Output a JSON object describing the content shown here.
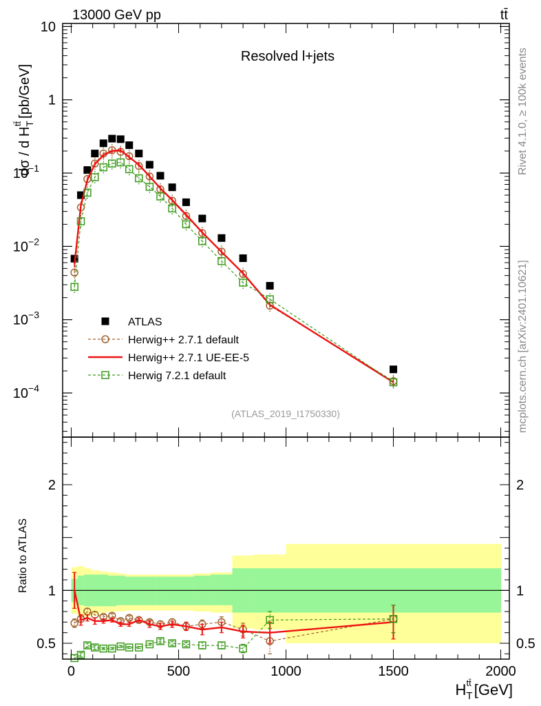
{
  "header": {
    "energy_label": "13000 GeV pp",
    "process_label": "tt̄"
  },
  "side_labels": {
    "rivet": "Rivet 4.1.0, ≥ 100k events",
    "mcplots": "mcplots.cern.ch [arXiv:2401.10621]"
  },
  "colors": {
    "atlas": "#000000",
    "herwigpp_default": "#a0622d",
    "herwigpp_ueee5": "#ee1111",
    "herwig7": "#3a9a1a",
    "band_inner": "#98f598",
    "band_outer": "#ffff99"
  },
  "chart_data": [
    {
      "type": "scatter",
      "panel": "main",
      "title": "Resolved l+jets",
      "analysis_tag": "(ATLAS_2019_I1750330)",
      "ylabel": "dσ / d H",
      "ylabel_sup": "tt̄",
      "ylabel_sub": "T",
      "ylabel_unit": "[pb/GeV]",
      "yscale": "log",
      "xlim": [
        -40,
        2040
      ],
      "ylim": [
        2.5e-05,
        11
      ],
      "yticks": [
        {
          "v": 10,
          "label": "10"
        },
        {
          "v": 1,
          "label": "1"
        },
        {
          "v": 0.1,
          "label": "10",
          "exp": "−1"
        },
        {
          "v": 0.01,
          "label": "10",
          "exp": "−2"
        },
        {
          "v": 0.001,
          "label": "10",
          "exp": "−3"
        },
        {
          "v": 0.0001,
          "label": "10",
          "exp": "−4"
        }
      ],
      "legend_position": "bottom-left",
      "series": [
        {
          "name": "ATLAS",
          "key": "atlas",
          "style": "data",
          "x": [
            15,
            45,
            75,
            110,
            150,
            190,
            230,
            270,
            315,
            365,
            415,
            470,
            535,
            610,
            700,
            800,
            925,
            1500
          ],
          "y": [
            0.0068,
            0.05,
            0.11,
            0.185,
            0.255,
            0.295,
            0.29,
            0.24,
            0.185,
            0.13,
            0.092,
            0.064,
            0.04,
            0.024,
            0.013,
            0.0069,
            0.0029,
            0.00021
          ]
        },
        {
          "name": "Herwig++ 2.7.1 default",
          "key": "herwigpp_default",
          "style": "circle-dashed",
          "x": [
            15,
            45,
            75,
            110,
            150,
            190,
            230,
            270,
            315,
            365,
            415,
            470,
            535,
            610,
            700,
            800,
            925,
            1500
          ],
          "y": [
            0.0044,
            0.034,
            0.083,
            0.135,
            0.185,
            0.205,
            0.195,
            0.17,
            0.125,
            0.09,
            0.06,
            0.042,
            0.026,
            0.0152,
            0.0085,
            0.0042,
            0.00155,
            0.000145
          ]
        },
        {
          "name": "Herwig++ 2.7.1 UE-EE-5",
          "key": "herwigpp_ueee5",
          "style": "line",
          "x": [
            15,
            45,
            75,
            110,
            150,
            190,
            230,
            270,
            315,
            365,
            415,
            470,
            535,
            610,
            700,
            800,
            925,
            1500
          ],
          "y": [
            0.0057,
            0.036,
            0.08,
            0.132,
            0.175,
            0.2,
            0.205,
            0.165,
            0.13,
            0.09,
            0.062,
            0.043,
            0.027,
            0.0155,
            0.0084,
            0.0043,
            0.0016,
            0.00014
          ]
        },
        {
          "name": "Herwig 7.2.1 default",
          "key": "herwig7",
          "style": "square-dashed",
          "x": [
            15,
            45,
            75,
            110,
            150,
            190,
            230,
            270,
            315,
            365,
            415,
            470,
            535,
            610,
            700,
            800,
            925,
            1500
          ],
          "y": [
            0.0028,
            0.022,
            0.054,
            0.088,
            0.12,
            0.135,
            0.14,
            0.113,
            0.085,
            0.065,
            0.048,
            0.033,
            0.02,
            0.0118,
            0.0063,
            0.0032,
            0.0019,
            0.00014
          ]
        }
      ]
    },
    {
      "type": "scatter",
      "panel": "ratio",
      "ylabel": "Ratio to ATLAS",
      "xlabel": "H",
      "xlabel_sup": "tt̄",
      "xlabel_sub": "T",
      "xlabel_unit": "[GeV]",
      "xlim": [
        -40,
        2040
      ],
      "ylim": [
        0.35,
        2.45
      ],
      "xticks": [
        0,
        500,
        1000,
        1500,
        2000
      ],
      "yticks": [
        0.5,
        1,
        2
      ],
      "bands": {
        "edges": [
          0,
          30,
          60,
          90,
          130,
          170,
          210,
          250,
          290,
          340,
          390,
          440,
          500,
          570,
          650,
          750,
          850,
          1000,
          2000
        ],
        "inner_lo": [
          0.89,
          0.86,
          0.85,
          0.85,
          0.85,
          0.85,
          0.86,
          0.86,
          0.86,
          0.86,
          0.86,
          0.86,
          0.86,
          0.86,
          0.86,
          0.79,
          0.79,
          0.79
        ],
        "inner_hi": [
          1.11,
          1.14,
          1.15,
          1.15,
          1.15,
          1.14,
          1.14,
          1.13,
          1.13,
          1.13,
          1.13,
          1.13,
          1.13,
          1.14,
          1.15,
          1.21,
          1.21,
          1.21
        ],
        "outer_lo": [
          0.78,
          0.75,
          0.75,
          0.77,
          0.79,
          0.8,
          0.8,
          0.81,
          0.81,
          0.81,
          0.81,
          0.81,
          0.81,
          0.8,
          0.79,
          0.64,
          0.63,
          0.5
        ],
        "outer_hi": [
          1.22,
          1.23,
          1.21,
          1.19,
          1.18,
          1.17,
          1.16,
          1.15,
          1.15,
          1.15,
          1.15,
          1.15,
          1.15,
          1.16,
          1.17,
          1.33,
          1.34,
          1.44
        ]
      },
      "series": [
        {
          "name": "Herwig++ 2.7.1 default",
          "key": "herwigpp_default",
          "style": "circle-dashed",
          "x": [
            15,
            45,
            75,
            110,
            150,
            190,
            230,
            270,
            315,
            365,
            415,
            470,
            535,
            610,
            700,
            800,
            925,
            1500
          ],
          "y": [
            0.69,
            0.73,
            0.8,
            0.77,
            0.75,
            0.76,
            0.71,
            0.74,
            0.72,
            0.7,
            0.68,
            0.7,
            0.66,
            0.68,
            0.7,
            0.63,
            0.52,
            0.73
          ],
          "err": [
            0.04,
            0.03,
            0.03,
            0.03,
            0.02,
            0.02,
            0.02,
            0.02,
            0.02,
            0.02,
            0.03,
            0.03,
            0.03,
            0.04,
            0.05,
            0.06,
            0.12,
            0.13
          ]
        },
        {
          "name": "Herwig++ 2.7.1 UE-EE-5",
          "key": "herwigpp_ueee5",
          "style": "line",
          "x": [
            15,
            45,
            75,
            110,
            150,
            190,
            230,
            270,
            315,
            365,
            415,
            470,
            535,
            610,
            700,
            800,
            925,
            1500
          ],
          "y": [
            1.0,
            0.72,
            0.74,
            0.71,
            0.71,
            0.72,
            0.68,
            0.68,
            0.72,
            0.68,
            0.66,
            0.68,
            0.66,
            0.63,
            0.65,
            0.61,
            0.6,
            0.7
          ],
          "err": [
            0.17,
            0.05,
            0.03,
            0.03,
            0.02,
            0.02,
            0.02,
            0.02,
            0.02,
            0.03,
            0.03,
            0.03,
            0.04,
            0.05,
            0.05,
            0.06,
            0.1,
            0.16
          ]
        },
        {
          "name": "Herwig 7.2.1 default",
          "key": "herwig7",
          "style": "square-dashed",
          "x": [
            15,
            45,
            75,
            110,
            150,
            190,
            230,
            270,
            315,
            365,
            415,
            470,
            535,
            610,
            700,
            800,
            925,
            1500
          ],
          "y": [
            0.36,
            0.39,
            0.48,
            0.46,
            0.45,
            0.45,
            0.47,
            0.46,
            0.46,
            0.49,
            0.52,
            0.5,
            0.49,
            0.48,
            0.48,
            0.45,
            0.72,
            0.73
          ],
          "err": [
            0.03,
            0.02,
            0.02,
            0.02,
            0.01,
            0.01,
            0.01,
            0.01,
            0.01,
            0.01,
            0.02,
            0.02,
            0.02,
            0.03,
            0.03,
            0.04,
            0.08,
            0.13
          ]
        }
      ]
    }
  ]
}
